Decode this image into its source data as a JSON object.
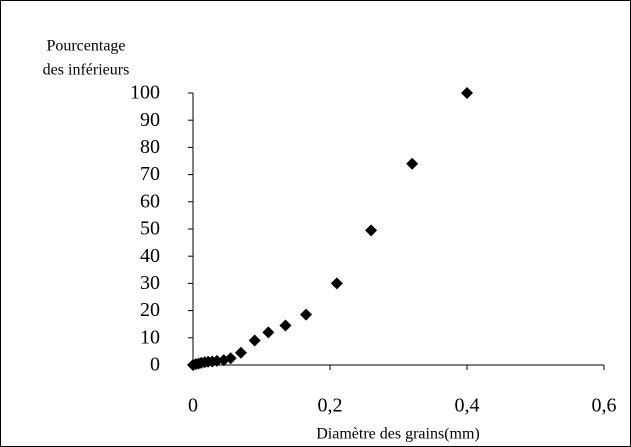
{
  "chart_data": {
    "type": "scatter",
    "ylabel": [
      "Pourcentage",
      "des inférieurs"
    ],
    "xlabel": "Diamètre des grains(mm)",
    "x": [
      0,
      0.004,
      0.008,
      0.012,
      0.017,
      0.022,
      0.028,
      0.035,
      0.045,
      0.055,
      0.07,
      0.09,
      0.11,
      0.135,
      0.165,
      0.21,
      0.26,
      0.32,
      0.4
    ],
    "series": [
      {
        "color": "#000000",
        "values": [
          0,
          0.3,
          0.5,
          0.8,
          1,
          1.2,
          1.3,
          1.5,
          1.8,
          2.5,
          4.5,
          9,
          12,
          14.5,
          18.5,
          30,
          49.5,
          74,
          100
        ]
      }
    ],
    "xlim": [
      0,
      0.6
    ],
    "xticks": [
      0,
      {
        "value": 0.2,
        "label": "0,2"
      },
      {
        "value": 0.4,
        "label": "0,4"
      },
      {
        "value": 0.6,
        "label": "0,6"
      }
    ],
    "ylim": [
      0,
      100
    ],
    "yticks": [
      0,
      10,
      20,
      30,
      40,
      50,
      60,
      70,
      80,
      90,
      100
    ],
    "grid": false
  }
}
